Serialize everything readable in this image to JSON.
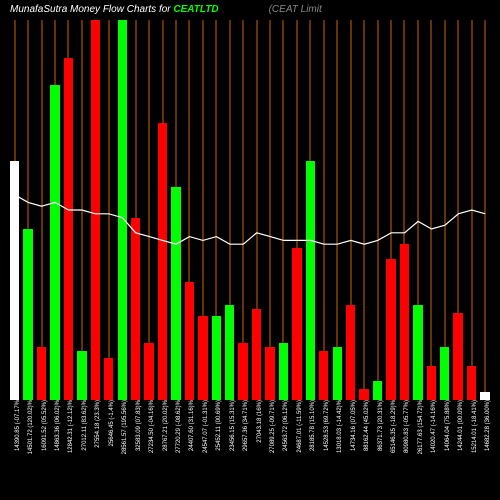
{
  "title": {
    "prefix": "MunafaSutra   Money Flow Charts for ",
    "ticker": "CEATLTD",
    "suffix": "(CEAT Limit"
  },
  "chart": {
    "type": "bar+line",
    "background_color": "#000000",
    "grid_color": "#cc6600",
    "bar_width_pct": 70,
    "colors": {
      "up": "#00ff00",
      "down": "#ff0000",
      "neutral": "#ffffff",
      "line": "#ffffff"
    },
    "bars": [
      {
        "label": "14390.85 (-07.17%",
        "value": 63,
        "color": "neutral"
      },
      {
        "label": "14501.72 (120.02)%",
        "value": 45,
        "color": "up"
      },
      {
        "label": "16091.52 (05.52%)",
        "value": 14,
        "color": "down"
      },
      {
        "label": "14863.36 (06.02)%",
        "value": 83,
        "color": "up"
      },
      {
        "label": "12842.31 (-12.12)%",
        "value": 90,
        "color": "down"
      },
      {
        "label": "27012.11 (83.62)%",
        "value": 13,
        "color": "up"
      },
      {
        "label": "27554.18 (23.3%)",
        "value": 100,
        "color": "down"
      },
      {
        "label": "25646.45 (-1.4%)",
        "value": 11,
        "color": "down"
      },
      {
        "label": "28561.57 (195.56%)",
        "value": 100,
        "color": "up"
      },
      {
        "label": "32583.09 (07.83)%",
        "value": 48,
        "color": "down"
      },
      {
        "label": "27234.50 (-04.16)%",
        "value": 15,
        "color": "down"
      },
      {
        "label": "28767.21 (20.02)%",
        "value": 73,
        "color": "down"
      },
      {
        "label": "27720.29 (-08.62)%",
        "value": 56,
        "color": "up"
      },
      {
        "label": "24407.60 (31.16)%",
        "value": 31,
        "color": "down"
      },
      {
        "label": "24547.07 (-01.31%)",
        "value": 22,
        "color": "down"
      },
      {
        "label": "25452.11 (00.69%)",
        "value": 22,
        "color": "up"
      },
      {
        "label": "23456.15 (15.31%)",
        "value": 25,
        "color": "up"
      },
      {
        "label": "29657.36 (34.71%)",
        "value": 15,
        "color": "down"
      },
      {
        "label": "27043.18 (16%)",
        "value": 24,
        "color": "down"
      },
      {
        "label": "27089.25 (-09.71%)",
        "value": 14,
        "color": "down"
      },
      {
        "label": "24563.72 (06.12%)",
        "value": 15,
        "color": "up"
      },
      {
        "label": "24687.01 (-11.59%)",
        "value": 40,
        "color": "down"
      },
      {
        "label": "28185.78 (15.10%)",
        "value": 63,
        "color": "up"
      },
      {
        "label": "14528.53 (69.72%)",
        "value": 13,
        "color": "down"
      },
      {
        "label": "13018.03 (-14.42)%",
        "value": 14,
        "color": "up"
      },
      {
        "label": "14734.16 (07.05%)",
        "value": 25,
        "color": "down"
      },
      {
        "label": "88162.44 (45.02%)",
        "value": 3,
        "color": "down"
      },
      {
        "label": "86371.73 (20.31%)",
        "value": 5,
        "color": "up"
      },
      {
        "label": "65146.35 (-18.29)%",
        "value": 37,
        "color": "down"
      },
      {
        "label": "80980.83 (-05.77%)",
        "value": 41,
        "color": "down"
      },
      {
        "label": "26177.63 (154.72)%",
        "value": 25,
        "color": "up"
      },
      {
        "label": "14020.47 (-14.16%)",
        "value": 9,
        "color": "down"
      },
      {
        "label": "14064.04 (75.88%)",
        "value": 14,
        "color": "up"
      },
      {
        "label": "14244.01 (00.09%)",
        "value": 23,
        "color": "down"
      },
      {
        "label": "15214.01 (-18.41%)",
        "value": 9,
        "color": "down"
      },
      {
        "label": "14682.28 (36.00%)",
        "value": 2,
        "color": "neutral"
      }
    ],
    "line_values": [
      54,
      52,
      51,
      52,
      50,
      50,
      49,
      49,
      48,
      44,
      43,
      42,
      41,
      43,
      42,
      43,
      41,
      41,
      44,
      43,
      42,
      42,
      42,
      41,
      41,
      42,
      41,
      42,
      44,
      44,
      47,
      45,
      46,
      49,
      50,
      49
    ]
  }
}
